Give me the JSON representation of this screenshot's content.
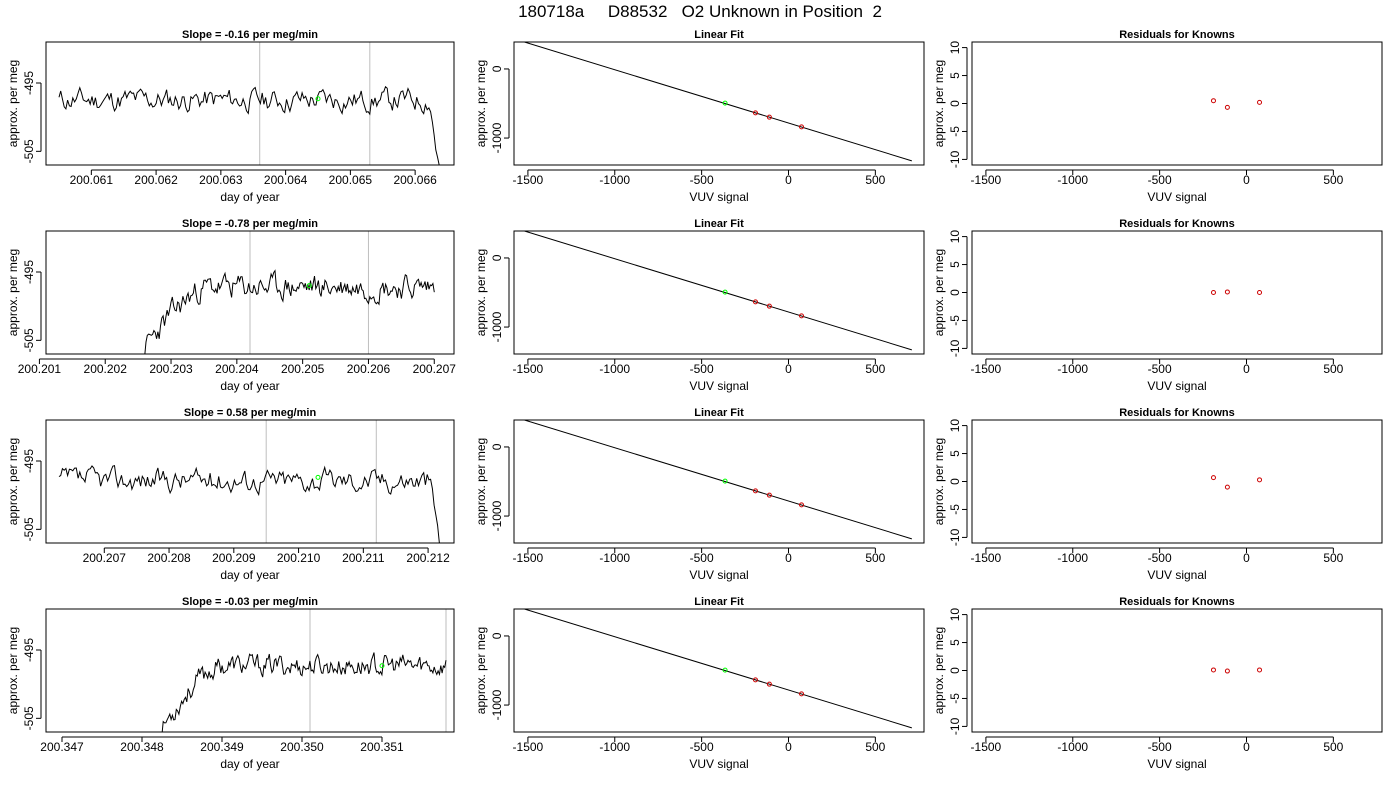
{
  "title": "180718a     D88532   O2 Unknown in Position  2",
  "colors": {
    "line": "#000000",
    "grid": "#bebebe",
    "unknown": "#00ff00",
    "known": "#cd0000"
  },
  "chart_data": [
    {
      "type": "line",
      "panel": "time-series",
      "row": 1,
      "title": "Slope =  -0.16  per meg/min",
      "xlabel": "day of year",
      "ylabel": "approx. per meg",
      "xlim": [
        200.0603,
        200.0666
      ],
      "ylim": [
        -507,
        -489
      ],
      "xticks": [
        200.061,
        200.062,
        200.063,
        200.064,
        200.065,
        200.066
      ],
      "xtick_labels": [
        "200.061",
        "200.062",
        "200.063",
        "200.064",
        "200.065",
        "200.066"
      ],
      "yticks": [
        -495,
        -505
      ],
      "ytick_labels": [
        "-495",
        "-505"
      ],
      "vlines": [
        200.0636,
        200.0653
      ],
      "series": [
        {
          "x_start": 200.0605,
          "x_end": 200.0664,
          "mean": -497.5,
          "amp": 1.6,
          "seed": 11,
          "start_offset": 0,
          "tail_drop": 12
        }
      ],
      "marker": {
        "x": 200.0645,
        "y": -497.3
      }
    },
    {
      "type": "line",
      "panel": "linear-fit",
      "row": 1,
      "title": "Linear Fit",
      "xlabel": "VUV signal",
      "ylabel": "approx. per meg",
      "xlim": [
        -1580,
        780
      ],
      "ylim": [
        -1390,
        390
      ],
      "xticks": [
        -1500,
        -1000,
        -500,
        0,
        500
      ],
      "xtick_labels": [
        "-1500",
        "-1000",
        "-500",
        "0",
        "500"
      ],
      "yticks": [
        0,
        -1000
      ],
      "ytick_labels": [
        "0",
        "-1000"
      ],
      "line": {
        "x": [
          -1520,
          710
        ],
        "y": [
          390,
          -1330
        ]
      },
      "unknown_point": {
        "x": -365,
        "y": -495
      },
      "known_points": {
        "x": [
          -190,
          -110,
          75
        ],
        "y": [
          -636,
          -698,
          -838
        ]
      }
    },
    {
      "type": "scatter",
      "panel": "residuals",
      "row": 1,
      "title": "Residuals for Knowns",
      "xlabel": "VUV signal",
      "ylabel": "approx. per meg",
      "xlim": [
        -1580,
        780
      ],
      "ylim": [
        -11,
        11
      ],
      "xticks": [
        -1500,
        -1000,
        -500,
        0,
        500
      ],
      "xtick_labels": [
        "-1500",
        "-1000",
        "-500",
        "0",
        "500"
      ],
      "yticks": [
        -10,
        -5,
        0,
        5,
        10
      ],
      "ytick_labels": [
        "-10",
        "-5",
        "0",
        "5",
        "10"
      ],
      "points": {
        "x": [
          -190,
          -110,
          75
        ],
        "y": [
          0.5,
          -0.7,
          0.2
        ]
      }
    },
    {
      "type": "line",
      "panel": "time-series",
      "row": 2,
      "title": "Slope =  -0.78  per meg/min",
      "xlabel": "day of year",
      "ylabel": "approx. per meg",
      "xlim": [
        200.2011,
        200.2073
      ],
      "ylim": [
        -507,
        -489
      ],
      "xticks": [
        200.201,
        200.202,
        200.203,
        200.204,
        200.205,
        200.206,
        200.207
      ],
      "xtick_labels": [
        "200.201",
        "200.202",
        "200.203",
        "200.204",
        "200.205",
        "200.206",
        "200.207"
      ],
      "yticks": [
        -495,
        -505
      ],
      "ytick_labels": [
        "-495",
        "-505"
      ],
      "vlines": [
        200.2042,
        200.206
      ],
      "series": [
        {
          "x_start": 200.2026,
          "x_end": 200.207,
          "mean": -497.2,
          "amp": 1.7,
          "seed": 23,
          "start_offset": -9,
          "tail_drop": 0
        }
      ],
      "marker": {
        "x": 200.2051,
        "y": -497.0
      }
    },
    {
      "type": "line",
      "panel": "linear-fit",
      "row": 2,
      "title": "Linear Fit",
      "xlabel": "VUV signal",
      "ylabel": "approx. per meg",
      "xlim": [
        -1580,
        780
      ],
      "ylim": [
        -1390,
        390
      ],
      "xticks": [
        -1500,
        -1000,
        -500,
        0,
        500
      ],
      "xtick_labels": [
        "-1500",
        "-1000",
        "-500",
        "0",
        "500"
      ],
      "yticks": [
        0,
        -1000
      ],
      "ytick_labels": [
        "0",
        "-1000"
      ],
      "line": {
        "x": [
          -1520,
          710
        ],
        "y": [
          390,
          -1330
        ]
      },
      "unknown_point": {
        "x": -365,
        "y": -495
      },
      "known_points": {
        "x": [
          -190,
          -110,
          75
        ],
        "y": [
          -636,
          -698,
          -838
        ]
      }
    },
    {
      "type": "scatter",
      "panel": "residuals",
      "row": 2,
      "title": "Residuals for Knowns",
      "xlabel": "VUV signal",
      "ylabel": "approx. per meg",
      "xlim": [
        -1580,
        780
      ],
      "ylim": [
        -11,
        11
      ],
      "xticks": [
        -1500,
        -1000,
        -500,
        0,
        500
      ],
      "xtick_labels": [
        "-1500",
        "-1000",
        "-500",
        "0",
        "500"
      ],
      "yticks": [
        -10,
        -5,
        0,
        5,
        10
      ],
      "ytick_labels": [
        "-10",
        "-5",
        "0",
        "5",
        "10"
      ],
      "points": {
        "x": [
          -190,
          -110,
          75
        ],
        "y": [
          0.0,
          0.1,
          0.0
        ]
      }
    },
    {
      "type": "line",
      "panel": "time-series",
      "row": 3,
      "title": "Slope =  0.58  per meg/min",
      "xlabel": "day of year",
      "ylabel": "approx. per meg",
      "xlim": [
        200.2061,
        200.2124
      ],
      "ylim": [
        -507,
        -489
      ],
      "xticks": [
        200.207,
        200.208,
        200.209,
        200.21,
        200.211,
        200.212
      ],
      "xtick_labels": [
        "200.207",
        "200.208",
        "200.209",
        "200.210",
        "200.211",
        "200.212"
      ],
      "yticks": [
        -495,
        -505
      ],
      "ytick_labels": [
        "-495",
        "-505"
      ],
      "vlines": [
        200.2095,
        200.2112
      ],
      "series": [
        {
          "x_start": 200.2063,
          "x_end": 200.2122,
          "mean": -497.8,
          "amp": 1.6,
          "seed": 37,
          "start_offset": 0,
          "tail_drop": 10
        }
      ],
      "marker": {
        "x": 200.2103,
        "y": -497.4
      }
    },
    {
      "type": "line",
      "panel": "linear-fit",
      "row": 3,
      "title": "Linear Fit",
      "xlabel": "VUV signal",
      "ylabel": "approx. per meg",
      "xlim": [
        -1580,
        780
      ],
      "ylim": [
        -1390,
        390
      ],
      "xticks": [
        -1500,
        -1000,
        -500,
        0,
        500
      ],
      "xtick_labels": [
        "-1500",
        "-1000",
        "-500",
        "0",
        "500"
      ],
      "yticks": [
        0,
        -1000
      ],
      "ytick_labels": [
        "0",
        "-1000"
      ],
      "line": {
        "x": [
          -1520,
          710
        ],
        "y": [
          390,
          -1330
        ]
      },
      "unknown_point": {
        "x": -365,
        "y": -495
      },
      "known_points": {
        "x": [
          -190,
          -110,
          75
        ],
        "y": [
          -636,
          -698,
          -838
        ]
      }
    },
    {
      "type": "scatter",
      "panel": "residuals",
      "row": 3,
      "title": "Residuals for Knowns",
      "xlabel": "VUV signal",
      "ylabel": "approx. per meg",
      "xlim": [
        -1580,
        780
      ],
      "ylim": [
        -11,
        11
      ],
      "xticks": [
        -1500,
        -1000,
        -500,
        0,
        500
      ],
      "xtick_labels": [
        "-1500",
        "-1000",
        "-500",
        "0",
        "500"
      ],
      "yticks": [
        -10,
        -5,
        0,
        5,
        10
      ],
      "ytick_labels": [
        "-10",
        "-5",
        "0",
        "5",
        "10"
      ],
      "points": {
        "x": [
          -190,
          -110,
          75
        ],
        "y": [
          0.7,
          -1.0,
          0.3
        ]
      }
    },
    {
      "type": "line",
      "panel": "time-series",
      "row": 4,
      "title": "Slope =  -0.03  per meg/min",
      "xlabel": "day of year",
      "ylabel": "approx. per meg",
      "xlim": [
        200.3468,
        200.3519
      ],
      "ylim": [
        -507,
        -489
      ],
      "xticks": [
        200.347,
        200.348,
        200.349,
        200.35,
        200.351
      ],
      "xtick_labels": [
        "200.347",
        "200.348",
        "200.349",
        "200.350",
        "200.351"
      ],
      "yticks": [
        -495,
        -505
      ],
      "ytick_labels": [
        "-495",
        "-505"
      ],
      "vlines": [
        200.3501,
        200.3518
      ],
      "series": [
        {
          "x_start": 200.3482,
          "x_end": 200.3518,
          "mean": -497.3,
          "amp": 1.5,
          "seed": 53,
          "start_offset": -10,
          "tail_drop": 0
        }
      ],
      "marker": {
        "x": 200.351,
        "y": -497.3
      }
    },
    {
      "type": "line",
      "panel": "linear-fit",
      "row": 4,
      "title": "Linear Fit",
      "xlabel": "VUV signal",
      "ylabel": "approx. per meg",
      "xlim": [
        -1580,
        780
      ],
      "ylim": [
        -1390,
        390
      ],
      "xticks": [
        -1500,
        -1000,
        -500,
        0,
        500
      ],
      "xtick_labels": [
        "-1500",
        "-1000",
        "-500",
        "0",
        "500"
      ],
      "yticks": [
        0,
        -1000
      ],
      "ytick_labels": [
        "0",
        "-1000"
      ],
      "line": {
        "x": [
          -1520,
          710
        ],
        "y": [
          390,
          -1330
        ]
      },
      "unknown_point": {
        "x": -365,
        "y": -495
      },
      "known_points": {
        "x": [
          -190,
          -110,
          75
        ],
        "y": [
          -636,
          -698,
          -838
        ]
      }
    },
    {
      "type": "scatter",
      "panel": "residuals",
      "row": 4,
      "title": "Residuals for Knowns",
      "xlabel": "VUV signal",
      "ylabel": "approx. per meg",
      "xlim": [
        -1580,
        780
      ],
      "ylim": [
        -11,
        11
      ],
      "xticks": [
        -1500,
        -1000,
        -500,
        0,
        500
      ],
      "xtick_labels": [
        "-1500",
        "-1000",
        "-500",
        "0",
        "500"
      ],
      "yticks": [
        -10,
        -5,
        0,
        5,
        10
      ],
      "ytick_labels": [
        "-10",
        "-5",
        "0",
        "5",
        "10"
      ],
      "points": {
        "x": [
          -190,
          -110,
          75
        ],
        "y": [
          0.1,
          -0.1,
          0.1
        ]
      }
    }
  ]
}
